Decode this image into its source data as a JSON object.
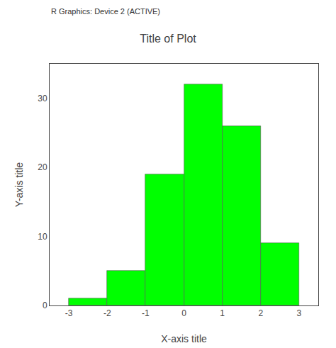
{
  "chart_data": {
    "type": "histogram",
    "title": "Title of Plot",
    "xlabel": "X-axis title",
    "ylabel": "Y-axis title",
    "bins": [
      -3,
      -2,
      -1,
      0,
      1,
      2,
      3
    ],
    "values": [
      1,
      5,
      19,
      32,
      26,
      9
    ],
    "color": "#00FF00",
    "xlim": [
      -3.5,
      3.5
    ],
    "ylim": [
      0,
      35
    ],
    "xticks": [
      -3,
      -2,
      -1,
      0,
      1,
      2,
      3
    ],
    "yticks": [
      0,
      10,
      20,
      30
    ],
    "grid": false,
    "annotations": [
      {
        "text": "R Graphics: Device 2 (ACTIVE)"
      }
    ]
  }
}
